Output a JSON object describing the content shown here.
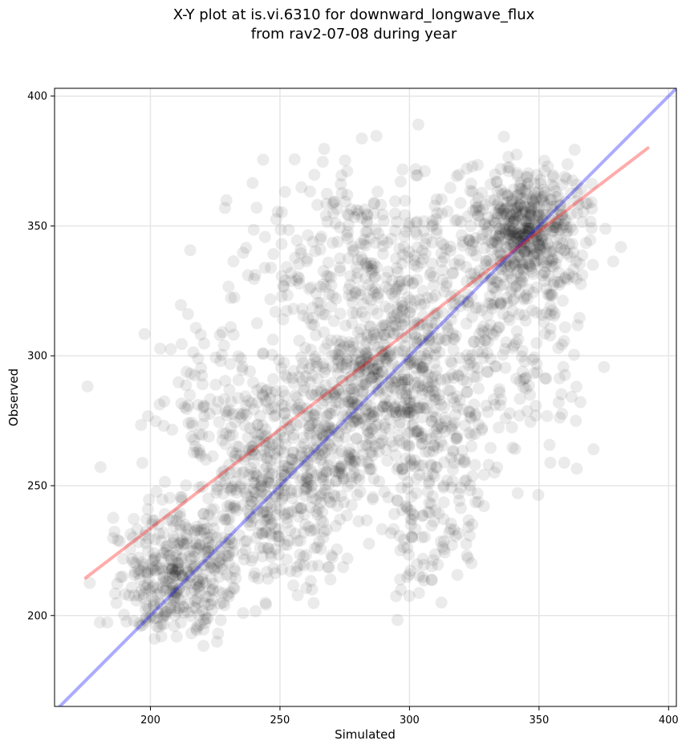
{
  "chart_data": {
    "type": "scatter",
    "title_line1": "X-Y plot at is.vi.6310 for downward_longwave_flux",
    "title_line2": "from rav2-07-08 during year",
    "xlabel": "Simulated",
    "ylabel": "Observed",
    "xlim": [
      163,
      403
    ],
    "ylim": [
      165,
      403
    ],
    "xticks": [
      200,
      250,
      300,
      350,
      400
    ],
    "yticks": [
      200,
      250,
      300,
      350,
      400
    ],
    "grid": true,
    "point_color": "#000000",
    "point_alpha": 0.08,
    "one_to_one_line": {
      "x": [
        163,
        403
      ],
      "y": [
        163,
        403
      ],
      "color": "#0000ff",
      "alpha": 0.33
    },
    "regression_line": {
      "x": [
        175,
        392
      ],
      "y": [
        214.5,
        380
      ],
      "color": "#ff0000",
      "alpha": 0.33
    },
    "point_clusters": [
      {
        "cx": 210,
        "cy": 215,
        "sx": 12,
        "sy": 14,
        "n": 380
      },
      {
        "cx": 248,
        "cy": 245,
        "sx": 14,
        "sy": 18,
        "n": 380
      },
      {
        "cx": 280,
        "cy": 282,
        "sx": 15,
        "sy": 20,
        "n": 420
      },
      {
        "cx": 305,
        "cy": 305,
        "sx": 16,
        "sy": 22,
        "n": 330
      },
      {
        "cx": 345,
        "cy": 348,
        "sx": 11,
        "sy": 12,
        "n": 520
      },
      {
        "cx": 280,
        "cy": 340,
        "sx": 22,
        "sy": 18,
        "n": 260
      },
      {
        "cx": 230,
        "cy": 280,
        "sx": 16,
        "sy": 16,
        "n": 150
      },
      {
        "cx": 312,
        "cy": 262,
        "sx": 12,
        "sy": 20,
        "n": 160
      },
      {
        "cx": 345,
        "cy": 300,
        "sx": 12,
        "sy": 20,
        "n": 130
      },
      {
        "cx": 305,
        "cy": 228,
        "sx": 6,
        "sy": 12,
        "n": 45
      }
    ]
  }
}
